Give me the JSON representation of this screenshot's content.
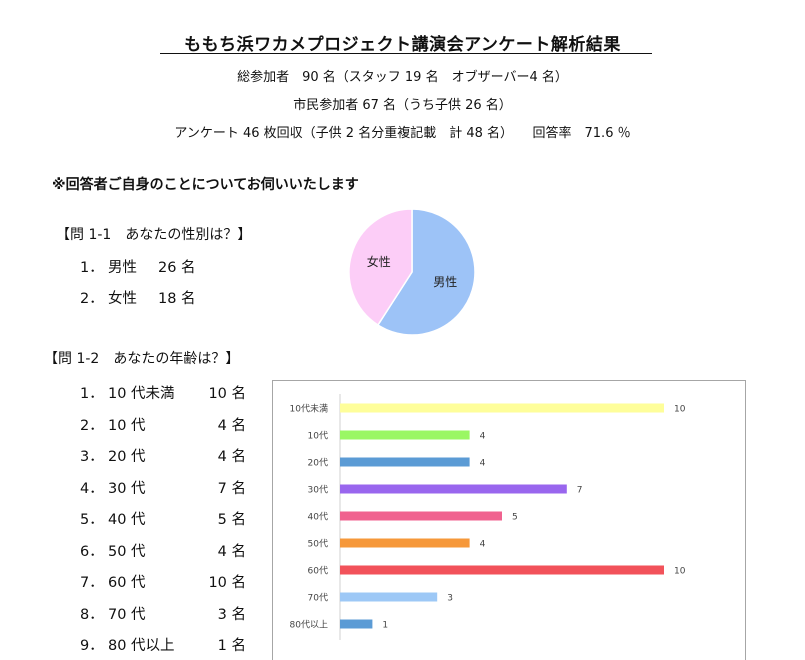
{
  "header": {
    "title": "ももち浜ワカメプロジェクト講演会アンケート解析結果",
    "line1": "総参加者　90 名（スタッフ 19 名　オブザーバー4 名）",
    "line2": "市民参加者 67 名（うち子供 26 名）",
    "line3": "アンケート 46 枚回収（子供 2 名分重複記載　計 48 名）　　回答率　71.6 ％"
  },
  "section_title": "※回答者ご自身のことについてお伺いいたします",
  "q1": {
    "heading": "【問 1-1　あなたの性別は？】",
    "answers": [
      {
        "num": "1．",
        "label": "男性",
        "count": "26 名"
      },
      {
        "num": "2．",
        "label": "女性",
        "count": "18 名"
      }
    ]
  },
  "q2": {
    "heading": "【問 1-2　あなたの年齢は？】",
    "answers": [
      {
        "num": "1．",
        "label": "10 代未満",
        "count": "10 名"
      },
      {
        "num": "2．",
        "label": "10 代",
        "count": "4 名"
      },
      {
        "num": "3．",
        "label": "20 代",
        "count": "4 名"
      },
      {
        "num": "4．",
        "label": "30 代",
        "count": "7 名"
      },
      {
        "num": "5．",
        "label": "40 代",
        "count": "5 名"
      },
      {
        "num": "6．",
        "label": "50 代",
        "count": "4 名"
      },
      {
        "num": "7．",
        "label": "60 代",
        "count": "10 名"
      },
      {
        "num": "8．",
        "label": "70 代",
        "count": "3 名"
      },
      {
        "num": "9．",
        "label": "80 代以上",
        "count": "1 名"
      }
    ]
  },
  "chart_data": [
    {
      "type": "pie",
      "title": "",
      "categories": [
        "男性",
        "女性"
      ],
      "values": [
        26,
        18
      ],
      "colors": [
        "#9dc3f7",
        "#fccdf7"
      ]
    },
    {
      "type": "bar",
      "orientation": "horizontal",
      "title": "",
      "categories": [
        "10代未満",
        "10代",
        "20代",
        "30代",
        "40代",
        "50代",
        "60代",
        "70代",
        "80代以上"
      ],
      "values": [
        10,
        4,
        4,
        7,
        5,
        4,
        10,
        3,
        1
      ],
      "colors": [
        "#fefe9a",
        "#9af764",
        "#5b9bd5",
        "#9966ee",
        "#f0628f",
        "#f6983a",
        "#f2525a",
        "#9dc8f6",
        "#5b9bd5"
      ],
      "xlim": [
        0,
        10
      ],
      "data_labels": true
    }
  ]
}
